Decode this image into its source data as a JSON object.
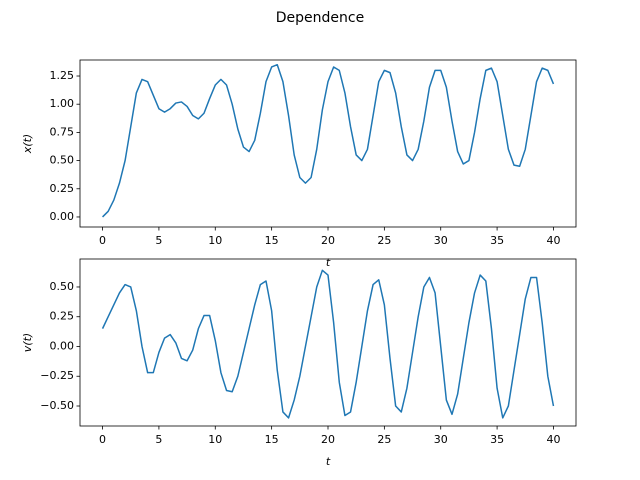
{
  "title": "Dependence",
  "chart_data": [
    {
      "type": "line",
      "ylabel": "x(t)",
      "xlabel": "t",
      "xlim": [
        -2,
        42
      ],
      "xticks": [
        0,
        5,
        10,
        15,
        20,
        25,
        30,
        35,
        40
      ],
      "ylim": [
        -0.089,
        1.392
      ],
      "yticks": [
        {
          "value": 0,
          "label": "0.00"
        },
        {
          "value": 0.25,
          "label": "0.25"
        },
        {
          "value": 0.5,
          "label": "0.50"
        },
        {
          "value": 0.75,
          "label": "0.75"
        },
        {
          "value": 1,
          "label": "1.00"
        },
        {
          "value": 1.25,
          "label": "1.25"
        }
      ],
      "x": [
        0,
        0.5,
        1,
        1.5,
        2,
        2.5,
        3,
        3.5,
        4,
        4.5,
        5,
        5.5,
        6,
        6.5,
        7,
        7.5,
        8,
        8.5,
        9,
        9.5,
        10,
        10.5,
        11,
        11.5,
        12,
        12.5,
        13,
        13.5,
        14,
        14.5,
        15,
        15.5,
        16,
        16.5,
        17,
        17.5,
        18,
        18.5,
        19,
        19.5,
        20,
        20.5,
        21,
        21.5,
        22,
        22.5,
        23,
        23.5,
        24,
        24.5,
        25,
        25.5,
        26,
        26.5,
        27,
        27.5,
        28,
        28.5,
        29,
        29.5,
        30,
        30.5,
        31,
        31.5,
        32,
        32.5,
        33,
        33.5,
        34,
        34.5,
        35,
        35.5,
        36,
        36.5,
        37,
        37.5,
        38,
        38.5,
        39,
        39.5,
        40
      ],
      "series": [
        {
          "color": "#1f77b4",
          "values": [
            0,
            0.05,
            0.15,
            0.3,
            0.5,
            0.8,
            1.1,
            1.22,
            1.2,
            1.08,
            0.96,
            0.93,
            0.96,
            1.01,
            1.02,
            0.98,
            0.9,
            0.87,
            0.92,
            1.05,
            1.17,
            1.22,
            1.17,
            1.0,
            0.78,
            0.62,
            0.58,
            0.68,
            0.92,
            1.2,
            1.33,
            1.35,
            1.2,
            0.9,
            0.55,
            0.35,
            0.3,
            0.35,
            0.6,
            0.95,
            1.2,
            1.33,
            1.3,
            1.1,
            0.8,
            0.55,
            0.5,
            0.6,
            0.9,
            1.2,
            1.3,
            1.28,
            1.1,
            0.8,
            0.55,
            0.5,
            0.6,
            0.85,
            1.15,
            1.3,
            1.3,
            1.15,
            0.85,
            0.58,
            0.47,
            0.5,
            0.75,
            1.05,
            1.3,
            1.32,
            1.2,
            0.9,
            0.6,
            0.46,
            0.45,
            0.6,
            0.9,
            1.2,
            1.32,
            1.3,
            1.18
          ]
        }
      ]
    },
    {
      "type": "line",
      "ylabel": "v(t)",
      "xlabel": "t",
      "xlim": [
        -2,
        42
      ],
      "xticks": [
        0,
        5,
        10,
        15,
        20,
        25,
        30,
        35,
        40
      ],
      "ylim": [
        -0.668,
        0.735
      ],
      "yticks": [
        {
          "value": -0.5,
          "label": "−0.50"
        },
        {
          "value": -0.25,
          "label": "−0.25"
        },
        {
          "value": 0,
          "label": "0.00"
        },
        {
          "value": 0.25,
          "label": "0.25"
        },
        {
          "value": 0.5,
          "label": "0.50"
        }
      ],
      "x": [
        0,
        0.5,
        1,
        1.5,
        2,
        2.5,
        3,
        3.5,
        4,
        4.5,
        5,
        5.5,
        6,
        6.5,
        7,
        7.5,
        8,
        8.5,
        9,
        9.5,
        10,
        10.5,
        11,
        11.5,
        12,
        12.5,
        13,
        13.5,
        14,
        14.5,
        15,
        15.5,
        16,
        16.5,
        17,
        17.5,
        18,
        18.5,
        19,
        19.5,
        20,
        20.5,
        21,
        21.5,
        22,
        22.5,
        23,
        23.5,
        24,
        24.5,
        25,
        25.5,
        26,
        26.5,
        27,
        27.5,
        28,
        28.5,
        29,
        29.5,
        30,
        30.5,
        31,
        31.5,
        32,
        32.5,
        33,
        33.5,
        34,
        34.5,
        35,
        35.5,
        36,
        36.5,
        37,
        37.5,
        38,
        38.5,
        39,
        39.5,
        40
      ],
      "series": [
        {
          "color": "#1f77b4",
          "values": [
            0.15,
            0.25,
            0.35,
            0.45,
            0.52,
            0.5,
            0.3,
            0,
            -0.22,
            -0.22,
            -0.05,
            0.07,
            0.1,
            0.03,
            -0.1,
            -0.12,
            -0.03,
            0.15,
            0.26,
            0.26,
            0.05,
            -0.22,
            -0.37,
            -0.38,
            -0.25,
            -0.05,
            0.15,
            0.35,
            0.52,
            0.55,
            0.3,
            -0.2,
            -0.55,
            -0.6,
            -0.45,
            -0.25,
            0,
            0.25,
            0.5,
            0.64,
            0.6,
            0.2,
            -0.3,
            -0.58,
            -0.55,
            -0.3,
            0,
            0.3,
            0.52,
            0.56,
            0.35,
            -0.1,
            -0.5,
            -0.55,
            -0.35,
            -0.05,
            0.25,
            0.5,
            0.58,
            0.45,
            0,
            -0.45,
            -0.57,
            -0.4,
            -0.1,
            0.2,
            0.45,
            0.6,
            0.55,
            0.15,
            -0.35,
            -0.6,
            -0.5,
            -0.2,
            0.1,
            0.4,
            0.58,
            0.58,
            0.2,
            -0.25,
            -0.5
          ]
        }
      ]
    }
  ]
}
